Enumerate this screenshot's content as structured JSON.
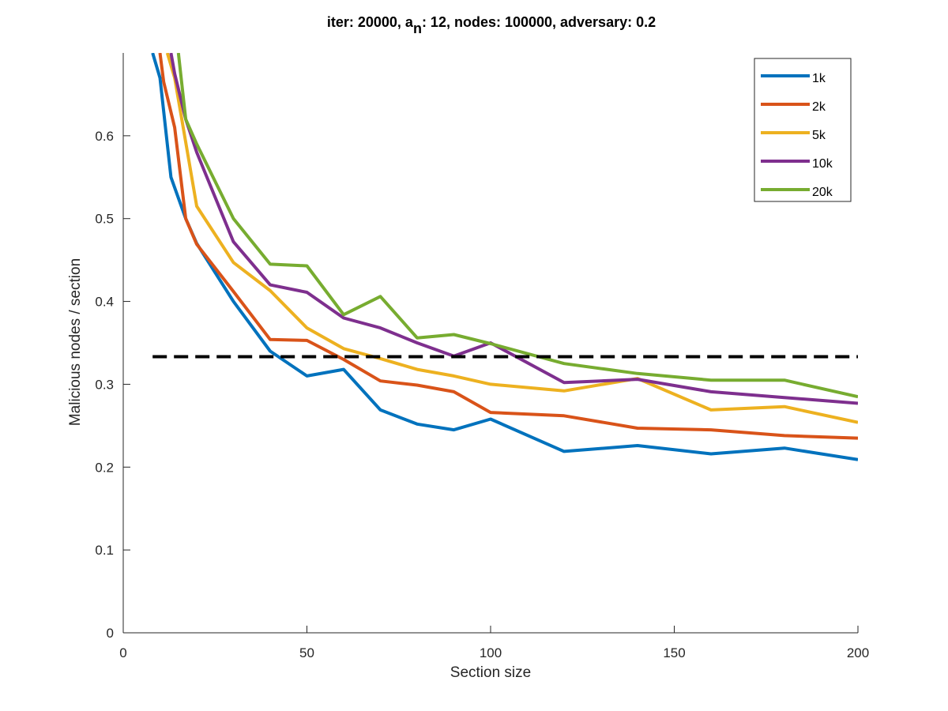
{
  "chart_data": {
    "type": "line",
    "title": {
      "prefix": "iter: 20000, a",
      "subscript": "n",
      "suffix": ": 12, nodes: 100000, adversary: 0.2"
    },
    "xlabel": "Section size",
    "ylabel": "Malicious nodes / section",
    "xlim": [
      0,
      200
    ],
    "ylim": [
      0,
      0.7
    ],
    "xticks": [
      0,
      50,
      100,
      150,
      200
    ],
    "xtick_labels": [
      "0",
      "50",
      "100",
      "150",
      "200"
    ],
    "yticks": [
      0,
      0.1,
      0.2,
      0.3,
      0.4,
      0.5,
      0.6
    ],
    "ytick_labels": [
      "0",
      "0.1",
      "0.2",
      "0.3",
      "0.4",
      "0.5",
      "0.6"
    ],
    "grid": false,
    "legend_position": "top-right",
    "threshold": {
      "y": 0.3333,
      "style": "dashed",
      "color": "#000000"
    },
    "series": [
      {
        "name": "1k",
        "color": "#0072BD",
        "points": [
          [
            8,
            0.7
          ],
          [
            10,
            0.67
          ],
          [
            13,
            0.55
          ],
          [
            17,
            0.5
          ],
          [
            20,
            0.47
          ],
          [
            30,
            0.4
          ],
          [
            40,
            0.34
          ],
          [
            50,
            0.31
          ],
          [
            60,
            0.318
          ],
          [
            70,
            0.269
          ],
          [
            80,
            0.252
          ],
          [
            90,
            0.245
          ],
          [
            100,
            0.258
          ],
          [
            120,
            0.219
          ],
          [
            140,
            0.226
          ],
          [
            160,
            0.216
          ],
          [
            180,
            0.223
          ],
          [
            200,
            0.209
          ]
        ]
      },
      {
        "name": "2k",
        "color": "#D95319",
        "points": [
          [
            10,
            0.7
          ],
          [
            11,
            0.665
          ],
          [
            14,
            0.61
          ],
          [
            17,
            0.5
          ],
          [
            20,
            0.469
          ],
          [
            30,
            0.412
          ],
          [
            40,
            0.354
          ],
          [
            50,
            0.353
          ],
          [
            60,
            0.33
          ],
          [
            70,
            0.304
          ],
          [
            80,
            0.299
          ],
          [
            90,
            0.291
          ],
          [
            100,
            0.266
          ],
          [
            120,
            0.262
          ],
          [
            140,
            0.247
          ],
          [
            160,
            0.245
          ],
          [
            180,
            0.238
          ],
          [
            200,
            0.235
          ]
        ]
      },
      {
        "name": "5k",
        "color": "#EDB120",
        "points": [
          [
            12,
            0.7
          ],
          [
            14,
            0.67
          ],
          [
            20,
            0.515
          ],
          [
            30,
            0.447
          ],
          [
            40,
            0.413
          ],
          [
            50,
            0.368
          ],
          [
            60,
            0.343
          ],
          [
            70,
            0.331
          ],
          [
            80,
            0.318
          ],
          [
            90,
            0.31
          ],
          [
            100,
            0.3
          ],
          [
            120,
            0.292
          ],
          [
            140,
            0.307
          ],
          [
            160,
            0.269
          ],
          [
            180,
            0.273
          ],
          [
            200,
            0.254
          ]
        ]
      },
      {
        "name": "10k",
        "color": "#7E2F8E",
        "points": [
          [
            13,
            0.7
          ],
          [
            14,
            0.675
          ],
          [
            17,
            0.62
          ],
          [
            20,
            0.58
          ],
          [
            30,
            0.472
          ],
          [
            40,
            0.42
          ],
          [
            50,
            0.411
          ],
          [
            60,
            0.38
          ],
          [
            70,
            0.368
          ],
          [
            80,
            0.35
          ],
          [
            90,
            0.334
          ],
          [
            100,
            0.35
          ],
          [
            120,
            0.302
          ],
          [
            140,
            0.306
          ],
          [
            160,
            0.291
          ],
          [
            180,
            0.284
          ],
          [
            200,
            0.277
          ]
        ]
      },
      {
        "name": "20k",
        "color": "#77AC30",
        "points": [
          [
            15,
            0.7
          ],
          [
            17,
            0.62
          ],
          [
            20,
            0.59
          ],
          [
            30,
            0.5
          ],
          [
            40,
            0.445
          ],
          [
            50,
            0.443
          ],
          [
            60,
            0.384
          ],
          [
            70,
            0.406
          ],
          [
            80,
            0.356
          ],
          [
            90,
            0.36
          ],
          [
            100,
            0.349
          ],
          [
            120,
            0.325
          ],
          [
            140,
            0.313
          ],
          [
            160,
            0.305
          ],
          [
            180,
            0.305
          ],
          [
            200,
            0.285
          ]
        ]
      }
    ]
  }
}
